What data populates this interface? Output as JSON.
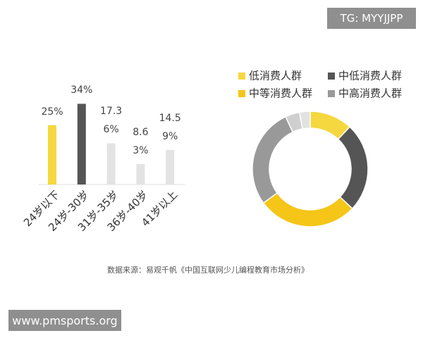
{
  "chart_data": [
    {
      "type": "bar",
      "categories": [
        "24岁以下",
        "24岁-30岁",
        "31岁-35岁",
        "36岁-40岁",
        "41岁以上"
      ],
      "values": [
        25,
        34,
        17.36,
        8.63,
        14.59
      ],
      "value_labels": [
        "25%",
        "34%",
        "17.36%",
        "8.63%",
        "14.59%"
      ],
      "colors": [
        "#f5d83f",
        "#555555",
        "#e3e3e3",
        "#e3e3e3",
        "#e3e3e3"
      ]
    },
    {
      "type": "donut",
      "categories": [
        "低消费人群",
        "中低消费人群",
        "中等消费人群",
        "中高消费人群",
        null,
        null
      ],
      "values": [
        12,
        25,
        28,
        28,
        4,
        3
      ],
      "colors": [
        "#f5d83f",
        "#555555",
        "#f5c518",
        "#999999",
        "#cfcfcf",
        "#e2e2e2"
      ]
    }
  ],
  "watermark_top": "TG: MYYJJPP",
  "watermark_bottom": "www.pmsports.org",
  "source": "数据来源：易观千帆《中国互联网少儿编程教育市场分析》"
}
